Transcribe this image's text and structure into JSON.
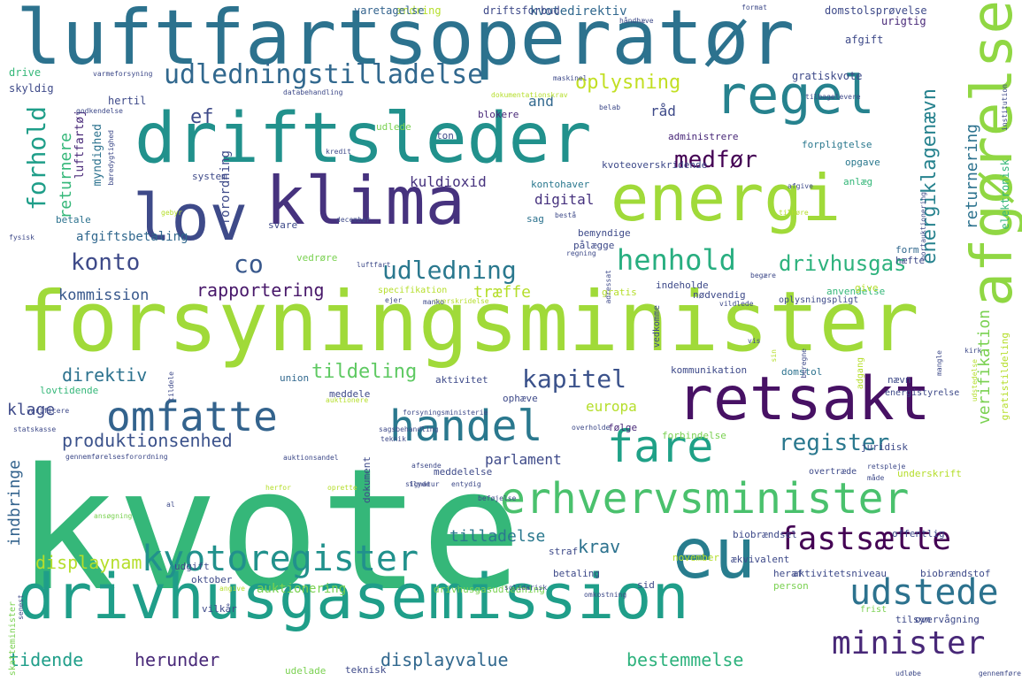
{
  "words": [
    {
      "text": "kvote",
      "color": "#35b779"
    },
    {
      "text": "forsyningsminister",
      "color": "#a0da39"
    },
    {
      "text": "luftfartsoperatør",
      "color": "#2c728e"
    },
    {
      "text": "driftsleder",
      "color": "#21918c"
    },
    {
      "text": "drivhusgasemission",
      "color": "#1f9e89"
    },
    {
      "text": "klima",
      "color": "#46327e"
    },
    {
      "text": "energi",
      "color": "#a0da39"
    },
    {
      "text": "retsakt",
      "color": "#471164"
    },
    {
      "text": "eu",
      "color": "#287d8e"
    },
    {
      "text": "lov",
      "color": "#3e4a89"
    },
    {
      "text": "regel",
      "color": "#26828e"
    },
    {
      "text": "afgørelse",
      "color": "#90d743"
    },
    {
      "text": "omfatte",
      "color": "#33638d"
    },
    {
      "text": "handel",
      "color": "#2a788e"
    },
    {
      "text": "fare",
      "color": "#1fa187"
    },
    {
      "text": "erhvervsminister",
      "color": "#4ac16d"
    },
    {
      "text": "kyotoregister",
      "color": "#21918c"
    },
    {
      "text": "fastsætte",
      "color": "#440154"
    },
    {
      "text": "udstede",
      "color": "#2c728e"
    },
    {
      "text": "minister",
      "color": "#482878"
    },
    {
      "text": "udledningstilladelse",
      "color": "#31688e"
    },
    {
      "text": "henhold",
      "color": "#28ae80"
    },
    {
      "text": "udledning",
      "color": "#2a788e"
    },
    {
      "text": "kapitel",
      "color": "#3b528b"
    },
    {
      "text": "register",
      "color": "#2a788e"
    },
    {
      "text": "konto",
      "color": "#3e4a89"
    },
    {
      "text": "forhold",
      "color": "#1f9e89"
    },
    {
      "text": "medfør",
      "color": "#440154"
    },
    {
      "text": "co",
      "color": "#38588c"
    },
    {
      "text": "energiklagenævn",
      "color": "#26828e"
    },
    {
      "text": "drivhusgas",
      "color": "#2db27d"
    },
    {
      "text": "oplysning",
      "color": "#c2df23"
    },
    {
      "text": "tildeling",
      "color": "#5ec962"
    },
    {
      "text": "rapportering",
      "color": "#48186a"
    },
    {
      "text": "produktionsenhed",
      "color": "#3b528b"
    },
    {
      "text": "herunder",
      "color": "#482878"
    },
    {
      "text": "displayvalue",
      "color": "#31688e"
    },
    {
      "text": "bestemmelse",
      "color": "#2db27d"
    },
    {
      "text": "displaynam",
      "color": "#b5de2b"
    },
    {
      "text": "tidende",
      "color": "#1f9e89"
    },
    {
      "text": "ef",
      "color": "#3e4a89"
    },
    {
      "text": "returnering",
      "color": "#2c728e"
    },
    {
      "text": "verifikation",
      "color": "#7ad151"
    },
    {
      "text": "returnere",
      "color": "#35b779"
    },
    {
      "text": "direktiv",
      "color": "#2c728e"
    },
    {
      "text": "klage",
      "color": "#3e4a89"
    },
    {
      "text": "krav",
      "color": "#2c728e"
    },
    {
      "text": "tilladelse",
      "color": "#2a788e"
    },
    {
      "text": "parlament",
      "color": "#3e4a89"
    },
    {
      "text": "europa",
      "color": "#b5de2b"
    },
    {
      "text": "indbringe",
      "color": "#33638d"
    },
    {
      "text": "kommission",
      "color": "#38588c"
    },
    {
      "text": "træffe",
      "color": "#b5de2b"
    },
    {
      "text": "kuldioxid",
      "color": "#46327e"
    },
    {
      "text": "digital",
      "color": "#46327e"
    },
    {
      "text": "and",
      "color": "#31688e"
    },
    {
      "text": "råd",
      "color": "#3e4a89"
    },
    {
      "text": "forordning",
      "color": "#3e4a89"
    },
    {
      "text": "afgiftsbetaling",
      "color": "#31688e"
    },
    {
      "text": "luftfartøj",
      "color": "#482878"
    },
    {
      "text": "myndighed",
      "color": "#2c728e"
    },
    {
      "text": "hertil",
      "color": "#3e4a89"
    },
    {
      "text": "elektronisk",
      "color": "#35b779"
    },
    {
      "text": "auktionering",
      "color": "#7ad151"
    },
    {
      "text": "kvotedirektiv",
      "color": "#31688e"
    },
    {
      "text": "driftsforbud",
      "color": "#3e4a89"
    },
    {
      "text": "ændring",
      "color": "#b5de2b"
    },
    {
      "text": "varetagelse",
      "color": "#33638d"
    },
    {
      "text": "domstolsprøvelse",
      "color": "#3e4a89"
    },
    {
      "text": "urigtig",
      "color": "#482878"
    },
    {
      "text": "afgift",
      "color": "#3e4a89"
    },
    {
      "text": "gratiskvote",
      "color": "#3e4a89"
    },
    {
      "text": "skyldig",
      "color": "#3e4a89"
    },
    {
      "text": "drive",
      "color": "#35b779"
    },
    {
      "text": "udlede",
      "color": "#7ad151"
    },
    {
      "text": "blokere",
      "color": "#482878"
    },
    {
      "text": "ton",
      "color": "#3e4a89"
    },
    {
      "text": "administrere",
      "color": "#482878"
    },
    {
      "text": "forpligtelse",
      "color": "#2a788e"
    },
    {
      "text": "opgave",
      "color": "#2a788e"
    },
    {
      "text": "kontohaver",
      "color": "#2a788e"
    },
    {
      "text": "kvoteoverskridende",
      "color": "#3e4a89"
    },
    {
      "text": "anlæg",
      "color": "#35b779"
    },
    {
      "text": "system",
      "color": "#3e4a89"
    },
    {
      "text": "betale",
      "color": "#2c728e"
    },
    {
      "text": "sag",
      "color": "#2c728e"
    },
    {
      "text": "bemyndige",
      "color": "#3e4a89"
    },
    {
      "text": "svare",
      "color": "#3e4a89"
    },
    {
      "text": "pålægge",
      "color": "#3e4a89"
    },
    {
      "text": "vedrøre",
      "color": "#7ad151"
    },
    {
      "text": "form",
      "color": "#31688e"
    },
    {
      "text": "hæfte",
      "color": "#3e4a89"
    },
    {
      "text": "anvendelse",
      "color": "#35b779"
    },
    {
      "text": "gratis",
      "color": "#b5de2b"
    },
    {
      "text": "indeholde",
      "color": "#3e4a89"
    },
    {
      "text": "nødvendig",
      "color": "#3e4a89"
    },
    {
      "text": "give",
      "color": "#b5de2b"
    },
    {
      "text": "vedkomme",
      "color": "#3e4a89"
    },
    {
      "text": "oplysningspligt",
      "color": "#3e4a89"
    },
    {
      "text": "specifikation",
      "color": "#b5de2b"
    },
    {
      "text": "union",
      "color": "#31688e"
    },
    {
      "text": "aktivitet",
      "color": "#3e4a89"
    },
    {
      "text": "kommunikation",
      "color": "#3e4a89"
    },
    {
      "text": "domstol",
      "color": "#2c728e"
    },
    {
      "text": "nævn",
      "color": "#3e4a89"
    },
    {
      "text": "meddele",
      "color": "#3e4a89"
    },
    {
      "text": "ophæve",
      "color": "#3e4a89"
    },
    {
      "text": "lovtidende",
      "color": "#35b779"
    },
    {
      "text": "følge",
      "color": "#482878"
    },
    {
      "text": "gratistildeling",
      "color": "#b5de2b"
    },
    {
      "text": "adgang",
      "color": "#b5de2b"
    },
    {
      "text": "energistyrelse",
      "color": "#3e4a89"
    },
    {
      "text": "forbindelse",
      "color": "#7ad151"
    },
    {
      "text": "juridisk",
      "color": "#3e4a89"
    },
    {
      "text": "underskrift",
      "color": "#b5de2b"
    },
    {
      "text": "dokument",
      "color": "#3e4a89"
    },
    {
      "text": "meddelelse",
      "color": "#3e4a89"
    },
    {
      "text": "overtræde",
      "color": "#3e4a89"
    },
    {
      "text": "biobrændsel",
      "color": "#3e4a89"
    },
    {
      "text": "november",
      "color": "#b5de2b"
    },
    {
      "text": "offentlig",
      "color": "#3e4a89"
    },
    {
      "text": "ækvivalent",
      "color": "#3e4a89"
    },
    {
      "text": "udgift",
      "color": "#3e4a89"
    },
    {
      "text": "betaling",
      "color": "#3e4a89"
    },
    {
      "text": "straf",
      "color": "#3e4a89"
    },
    {
      "text": "heraf",
      "color": "#3e4a89"
    },
    {
      "text": "aktivitetsniveau",
      "color": "#3e4a89"
    },
    {
      "text": "biobrændstof",
      "color": "#3e4a89"
    },
    {
      "text": "oktober",
      "color": "#3e4a89"
    },
    {
      "text": "sid",
      "color": "#3e4a89"
    },
    {
      "text": "person",
      "color": "#7ad151"
    },
    {
      "text": "overvågning",
      "color": "#3e4a89"
    },
    {
      "text": "tilsyn",
      "color": "#3e4a89"
    },
    {
      "text": "frist",
      "color": "#7ad151"
    },
    {
      "text": "vilkår",
      "color": "#3e4a89"
    },
    {
      "text": "drivhusgasudledning",
      "color": "#7ad151"
    },
    {
      "text": "teknisk",
      "color": "#3e4a89"
    },
    {
      "text": "udelade",
      "color": "#7ad151"
    },
    {
      "text": "skatteminister",
      "color": "#7ad151"
    },
    {
      "text": "senest",
      "color": "#3e4a89"
    },
    {
      "text": "gennemførelsesforordning",
      "color": "#3e4a89"
    },
    {
      "text": "auktionsandel",
      "color": "#3e4a89"
    },
    {
      "text": "sagsbehandling",
      "color": "#3e4a89"
    },
    {
      "text": "afsende",
      "color": "#3e4a89"
    },
    {
      "text": "verificere",
      "color": "#3e4a89"
    },
    {
      "text": "signatur",
      "color": "#3e4a89"
    },
    {
      "text": "entydig",
      "color": "#3e4a89"
    },
    {
      "text": "flyde",
      "color": "#3e4a89"
    },
    {
      "text": "beføjelse",
      "color": "#3e4a89"
    },
    {
      "text": "retspleje",
      "color": "#3e4a89"
    },
    {
      "text": "måde",
      "color": "#3e4a89"
    },
    {
      "text": "ansøgning",
      "color": "#7ad151"
    },
    {
      "text": "solidarisk",
      "color": "#3e4a89"
    },
    {
      "text": "omkostning",
      "color": "#3e4a89"
    },
    {
      "text": "angive",
      "color": "#b5de2b"
    },
    {
      "text": "tildele",
      "color": "#3e4a89"
    },
    {
      "text": "auktionere",
      "color": "#b5de2b"
    },
    {
      "text": "forsyningsministerie",
      "color": "#3e4a89"
    },
    {
      "text": "overholde",
      "color": "#3e4a89"
    },
    {
      "text": "teknik",
      "color": "#3e4a89"
    },
    {
      "text": "fysisk",
      "color": "#3e4a89"
    },
    {
      "text": "regning",
      "color": "#3e4a89"
    },
    {
      "text": "luftfart",
      "color": "#3e4a89"
    },
    {
      "text": "gebyr",
      "color": "#b5de2b"
    },
    {
      "text": "bæredygtighed",
      "color": "#3e4a89"
    },
    {
      "text": "kredit",
      "color": "#3e4a89"
    },
    {
      "text": "databehandling",
      "color": "#3e4a89"
    },
    {
      "text": "godkendelse",
      "color": "#3e4a89"
    },
    {
      "text": "dokumentationskrav",
      "color": "#b5de2b"
    },
    {
      "text": "maskinel",
      "color": "#3e4a89"
    },
    {
      "text": "institution",
      "color": "#3e4a89"
    },
    {
      "text": "tilbagelevere",
      "color": "#3e4a89"
    },
    {
      "text": "bortauktionering",
      "color": "#3e4a89"
    },
    {
      "text": "afgive",
      "color": "#3e4a89"
    },
    {
      "text": "tilhøre",
      "color": "#b5de2b"
    },
    {
      "text": "begære",
      "color": "#3e4a89"
    },
    {
      "text": "vis",
      "color": "#3e4a89"
    },
    {
      "text": "kirk",
      "color": "#3e4a89"
    },
    {
      "text": "mangle",
      "color": "#3e4a89"
    },
    {
      "text": "beregne",
      "color": "#3e4a89"
    },
    {
      "text": "overskridelse",
      "color": "#b5de2b"
    },
    {
      "text": "håndhæve",
      "color": "#3e4a89"
    },
    {
      "text": "varmeforsyning",
      "color": "#3e4a89"
    },
    {
      "text": "format",
      "color": "#3e4a89"
    },
    {
      "text": "belab",
      "color": "#3e4a89"
    },
    {
      "text": "ejer",
      "color": "#3e4a89"
    },
    {
      "text": "manko",
      "color": "#3e4a89"
    },
    {
      "text": "vildlede",
      "color": "#3e4a89"
    },
    {
      "text": "bestå",
      "color": "#3e4a89"
    },
    {
      "text": "adressat",
      "color": "#3e4a89"
    },
    {
      "text": "december",
      "color": "#3e4a89"
    },
    {
      "text": "sin",
      "color": "#b5de2b"
    },
    {
      "text": "udløbe",
      "color": "#3e4a89"
    },
    {
      "text": "gennemføre",
      "color": "#3e4a89"
    },
    {
      "text": "statskasse",
      "color": "#3e4a89"
    },
    {
      "text": "al",
      "color": "#3e4a89"
    },
    {
      "text": "herfor",
      "color": "#b5de2b"
    },
    {
      "text": "oprette",
      "color": "#b5de2b"
    },
    {
      "text": "udstedelse",
      "color": "#b5de2b"
    },
    {
      "text": "vedrørende",
      "color": "#3e4a89"
    }
  ]
}
